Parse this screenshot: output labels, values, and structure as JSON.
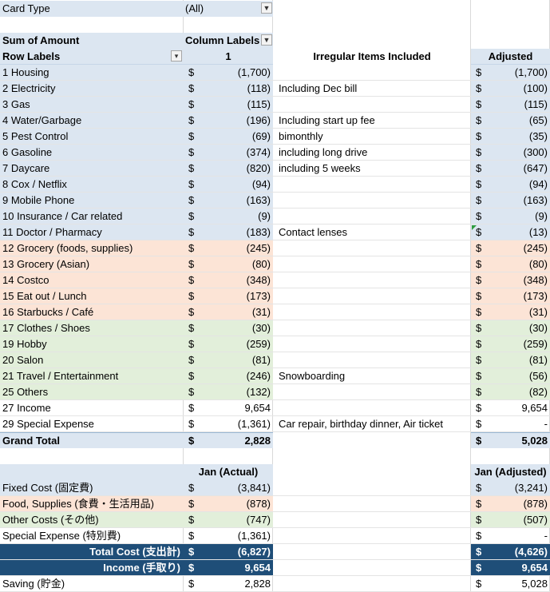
{
  "filter": {
    "label": "Card Type",
    "value": "(All)"
  },
  "header": {
    "sum_label": "Sum of Amount",
    "column_labels": "Column Labels",
    "row_labels": "Row Labels",
    "col_1": "1",
    "irregular": "Irregular Items Included",
    "adjusted": "Adjusted"
  },
  "rows": [
    {
      "label": "1 Housing",
      "dollar": "$",
      "amount": "(1,700)",
      "note": "",
      "adjusted": "(1,700)",
      "adj_dollar": "$",
      "color": "blue"
    },
    {
      "label": "2 Electricity",
      "dollar": "$",
      "amount": "(118)",
      "note": "Including Dec bill",
      "adjusted": "(100)",
      "adj_dollar": "$",
      "color": "blue"
    },
    {
      "label": "3 Gas",
      "dollar": "$",
      "amount": "(115)",
      "note": "",
      "adjusted": "(115)",
      "adj_dollar": "$",
      "color": "blue"
    },
    {
      "label": "4 Water/Garbage",
      "dollar": "$",
      "amount": "(196)",
      "note": "Including start up fee",
      "adjusted": "(65)",
      "adj_dollar": "$",
      "color": "blue"
    },
    {
      "label": "5 Pest Control",
      "dollar": "$",
      "amount": "(69)",
      "note": "bimonthly",
      "adjusted": "(35)",
      "adj_dollar": "$",
      "color": "blue"
    },
    {
      "label": "6 Gasoline",
      "dollar": "$",
      "amount": "(374)",
      "note": "including long drive",
      "adjusted": "(300)",
      "adj_dollar": "$",
      "color": "blue"
    },
    {
      "label": "7 Daycare",
      "dollar": "$",
      "amount": "(820)",
      "note": "including 5 weeks",
      "adjusted": "(647)",
      "adj_dollar": "$",
      "color": "blue"
    },
    {
      "label": "8 Cox / Netflix",
      "dollar": "$",
      "amount": "(94)",
      "note": "",
      "adjusted": "(94)",
      "adj_dollar": "$",
      "color": "blue"
    },
    {
      "label": "9 Mobile Phone",
      "dollar": "$",
      "amount": "(163)",
      "note": "",
      "adjusted": "(163)",
      "adj_dollar": "$",
      "color": "blue"
    },
    {
      "label": "10 Insurance / Car related",
      "dollar": "$",
      "amount": "(9)",
      "note": "",
      "adjusted": "(9)",
      "adj_dollar": "$",
      "color": "blue"
    },
    {
      "label": "11 Doctor / Pharmacy",
      "dollar": "$",
      "amount": "(183)",
      "note": "Contact lenses",
      "adjusted": "(13)",
      "adj_dollar": "$",
      "color": "blue",
      "comment": true
    },
    {
      "label": "12 Grocery (foods, supplies)",
      "dollar": "$",
      "amount": "(245)",
      "note": "",
      "adjusted": "(245)",
      "adj_dollar": "$",
      "color": "peach"
    },
    {
      "label": "13 Grocery (Asian)",
      "dollar": "$",
      "amount": "(80)",
      "note": "",
      "adjusted": "(80)",
      "adj_dollar": "$",
      "color": "peach"
    },
    {
      "label": "14 Costco",
      "dollar": "$",
      "amount": "(348)",
      "note": "",
      "adjusted": "(348)",
      "adj_dollar": "$",
      "color": "peach"
    },
    {
      "label": "15 Eat out / Lunch",
      "dollar": "$",
      "amount": "(173)",
      "note": "",
      "adjusted": "(173)",
      "adj_dollar": "$",
      "color": "peach"
    },
    {
      "label": "16 Starbucks / Café",
      "dollar": "$",
      "amount": "(31)",
      "note": "",
      "adjusted": "(31)",
      "adj_dollar": "$",
      "color": "peach"
    },
    {
      "label": "17 Clothes / Shoes",
      "dollar": "$",
      "amount": "(30)",
      "note": "",
      "adjusted": "(30)",
      "adj_dollar": "$",
      "color": "green"
    },
    {
      "label": "19 Hobby",
      "dollar": "$",
      "amount": "(259)",
      "note": "",
      "adjusted": "(259)",
      "adj_dollar": "$",
      "color": "green"
    },
    {
      "label": "20 Salon",
      "dollar": "$",
      "amount": "(81)",
      "note": "",
      "adjusted": "(81)",
      "adj_dollar": "$",
      "color": "green"
    },
    {
      "label": "21 Travel / Entertainment",
      "dollar": "$",
      "amount": "(246)",
      "note": "Snowboarding",
      "adjusted": "(56)",
      "adj_dollar": "$",
      "color": "green"
    },
    {
      "label": "25 Others",
      "dollar": "$",
      "amount": "(132)",
      "note": "",
      "adjusted": "(82)",
      "adj_dollar": "$",
      "color": "green"
    },
    {
      "label": "27 Income",
      "dollar": "$",
      "amount": "9,654",
      "note": "",
      "adjusted": "9,654",
      "adj_dollar": "$",
      "color": "none"
    },
    {
      "label": "29 Special Expense",
      "dollar": "$",
      "amount": "(1,361)",
      "note": "Car repair, birthday dinner, Air ticket",
      "adjusted": "-",
      "adj_dollar": "$",
      "color": "none"
    }
  ],
  "grand_total": {
    "label": "Grand Total",
    "dollar": "$",
    "amount": "2,828",
    "adj_dollar": "$",
    "adjusted": "5,028"
  },
  "summary": {
    "actual_header": "Jan (Actual)",
    "adjusted_header": "Jan (Adjusted)",
    "rows": [
      {
        "label": "Fixed Cost (固定費)",
        "dollar": "$",
        "actual": "(3,841)",
        "adj_dollar": "$",
        "adjusted": "(3,241)",
        "style": "blue"
      },
      {
        "label": "Food, Supplies (食費・生活用品)",
        "dollar": "$",
        "actual": "(878)",
        "adj_dollar": "$",
        "adjusted": "(878)",
        "style": "peach"
      },
      {
        "label": "Other Costs (その他)",
        "dollar": "$",
        "actual": "(747)",
        "adj_dollar": "$",
        "adjusted": "(507)",
        "style": "green"
      },
      {
        "label": "Special Expense (特別費)",
        "dollar": "$",
        "actual": "(1,361)",
        "adj_dollar": "$",
        "adjusted": "-",
        "style": "none"
      },
      {
        "label": "Total Cost (支出計)",
        "dollar": "$",
        "actual": "(6,827)",
        "adj_dollar": "$",
        "adjusted": "(4,626)",
        "style": "navy"
      },
      {
        "label": "Income (手取り)",
        "dollar": "$",
        "actual": "9,654",
        "adj_dollar": "$",
        "adjusted": "9,654",
        "style": "navy"
      },
      {
        "label": "Saving (貯金)",
        "dollar": "$",
        "actual": "2,828",
        "adj_dollar": "$",
        "adjusted": "5,028",
        "style": "none"
      }
    ]
  },
  "colors": {
    "blue": "#dce6f1",
    "peach": "#fce4d6",
    "green": "#e2efda",
    "navy": "#1f4e78"
  },
  "icons": {
    "filter_dropdown": "dropdown-arrow-icon",
    "column_dropdown": "dropdown-arrow-icon",
    "row_filter": "filter-applied-icon"
  }
}
